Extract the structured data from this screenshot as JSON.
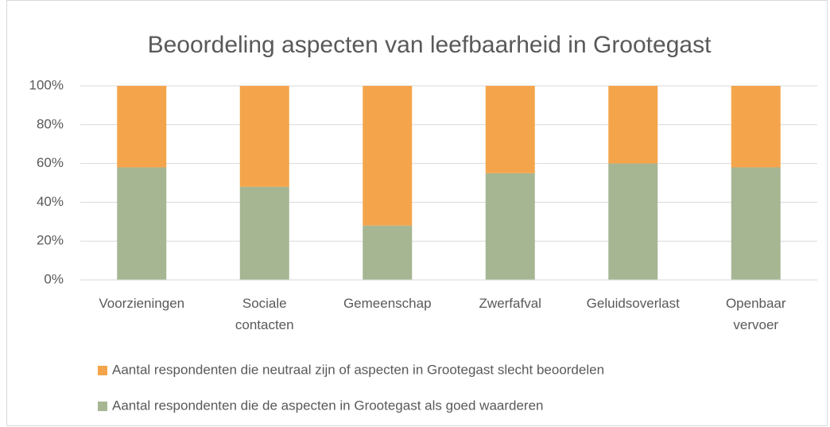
{
  "chart_data": {
    "type": "stacked_bar",
    "title": "Beoordeling aspecten van leefbaarheid in Grootegast",
    "categories": [
      "Voorzieningen",
      "Sociale contacten",
      "Gemeenschap",
      "Zwerfafval",
      "Geluidsoverlast",
      "Openbaar vervoer"
    ],
    "series": [
      {
        "name": "Aantal respondenten die neutraal zijn of aspecten in Grootegast slecht beoordelen",
        "color": "#f4a54b",
        "values": [
          42,
          52,
          72,
          45,
          40,
          42
        ]
      },
      {
        "name": "Aantal respondenten die de aspecten in Grootegast als goed waarderen",
        "color": "#a6b693",
        "values": [
          58,
          48,
          28,
          55,
          60,
          58
        ]
      }
    ],
    "ylim": [
      0,
      100
    ],
    "yticks": [
      {
        "value": 0,
        "label": "0%"
      },
      {
        "value": 20,
        "label": "20%"
      },
      {
        "value": 40,
        "label": "40%"
      },
      {
        "value": 60,
        "label": "60%"
      },
      {
        "value": 80,
        "label": "80%"
      },
      {
        "value": 100,
        "label": "100%"
      }
    ],
    "grid": true
  }
}
